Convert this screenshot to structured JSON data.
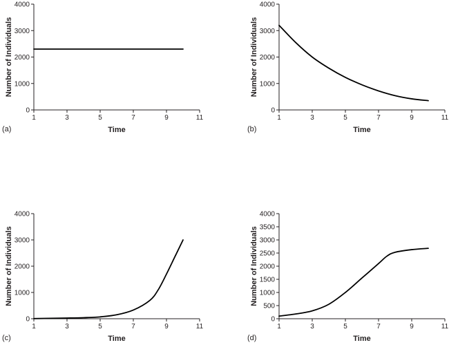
{
  "chart_data": [
    {
      "type": "line",
      "panel_label": "(a)",
      "xlabel": "Time",
      "ylabel": "Number of Individuals",
      "xlim": [
        1,
        11
      ],
      "ylim": [
        0,
        4000
      ],
      "xticks": [
        "1",
        "3",
        "5",
        "7",
        "9",
        "11"
      ],
      "yticks": [
        "0",
        "1000",
        "2000",
        "3000",
        "4000"
      ],
      "series": [
        {
          "x": [
            1,
            3,
            5,
            7,
            9,
            10
          ],
          "y": [
            2300,
            2300,
            2300,
            2300,
            2300,
            2300
          ]
        }
      ]
    },
    {
      "type": "line",
      "panel_label": "(b)",
      "xlabel": "Time",
      "ylabel": "Number of Individuals",
      "xlim": [
        1,
        11
      ],
      "ylim": [
        0,
        4000
      ],
      "xticks": [
        "1",
        "3",
        "5",
        "7",
        "9",
        "11"
      ],
      "yticks": [
        "0",
        "1000",
        "2000",
        "3000",
        "4000"
      ],
      "series": [
        {
          "x": [
            1,
            2,
            3,
            4,
            5,
            6,
            7,
            8,
            9,
            10
          ],
          "y": [
            3200,
            2550,
            2000,
            1580,
            1230,
            950,
            720,
            540,
            420,
            350
          ]
        }
      ]
    },
    {
      "type": "line",
      "panel_label": "(c)",
      "xlabel": "Time",
      "ylabel": "Number of Individuals",
      "xlim": [
        1,
        11
      ],
      "ylim": [
        0,
        4000
      ],
      "xticks": [
        "1",
        "3",
        "5",
        "7",
        "9",
        "11"
      ],
      "yticks": [
        "0",
        "1000",
        "2000",
        "3000",
        "4000"
      ],
      "series": [
        {
          "x": [
            1,
            2,
            3,
            4,
            5,
            6,
            7,
            8,
            8.5,
            9,
            9.5,
            10
          ],
          "y": [
            5,
            15,
            25,
            40,
            70,
            150,
            330,
            700,
            1100,
            1700,
            2350,
            3000
          ]
        }
      ]
    },
    {
      "type": "line",
      "panel_label": "(d)",
      "xlabel": "Time",
      "ylabel": "Number of Individuals",
      "xlim": [
        1,
        11
      ],
      "ylim": [
        0,
        4000
      ],
      "xticks": [
        "1",
        "3",
        "5",
        "7",
        "9",
        "11"
      ],
      "yticks": [
        "0",
        "500",
        "1000",
        "1500",
        "2000",
        "2500",
        "3000",
        "3500",
        "4000"
      ],
      "series": [
        {
          "x": [
            1,
            2,
            3,
            4,
            5,
            6,
            7,
            7.5,
            8,
            9,
            10
          ],
          "y": [
            100,
            180,
            300,
            550,
            1000,
            1550,
            2100,
            2380,
            2530,
            2630,
            2680
          ]
        }
      ]
    }
  ]
}
